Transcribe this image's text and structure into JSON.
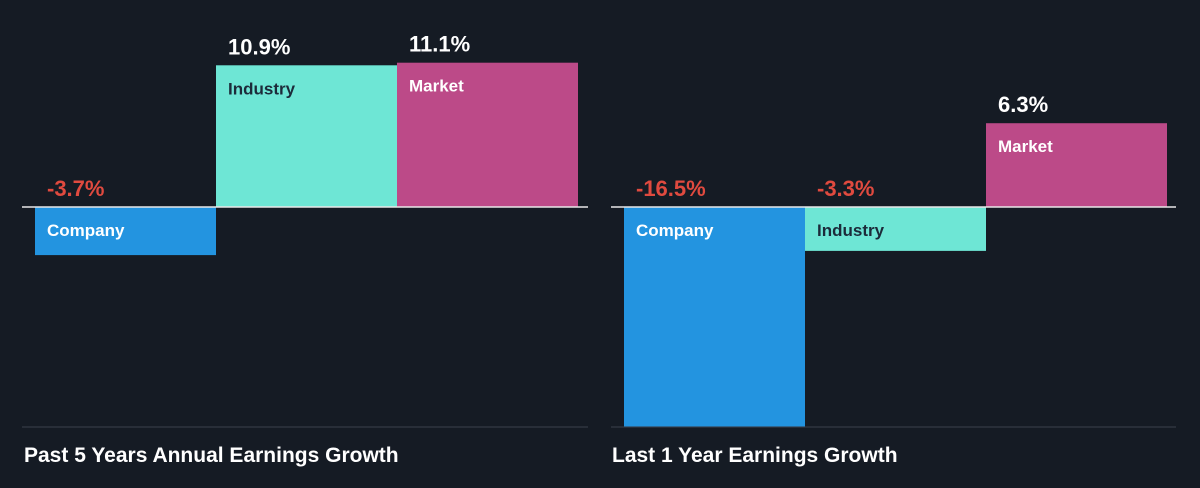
{
  "colors": {
    "background": "#151b24",
    "company": "#2394e0",
    "industry": "#6ee6d5",
    "market": "#bc4a88",
    "negative_value": "#e04a3f",
    "positive_value": "#ffffff",
    "bar_label_dark": "#1c2b3a",
    "bar_label_light": "#ffffff",
    "baseline": "#e8e8e8",
    "bottom_rule": "#3a424d"
  },
  "chart_data": [
    {
      "type": "bar",
      "title": "Past 5 Years Annual Earnings Growth",
      "categories": [
        "Company",
        "Industry",
        "Market"
      ],
      "values": [
        -3.7,
        10.9,
        11.1
      ],
      "value_labels": [
        "-3.7%",
        "10.9%",
        "11.1%"
      ],
      "unit": "%"
    },
    {
      "type": "bar",
      "title": "Last 1 Year Earnings Growth",
      "categories": [
        "Company",
        "Industry",
        "Market"
      ],
      "values": [
        -16.5,
        -3.3,
        6.3
      ],
      "value_labels": [
        "-16.5%",
        "-3.3%",
        "6.3%"
      ],
      "unit": "%"
    }
  ]
}
